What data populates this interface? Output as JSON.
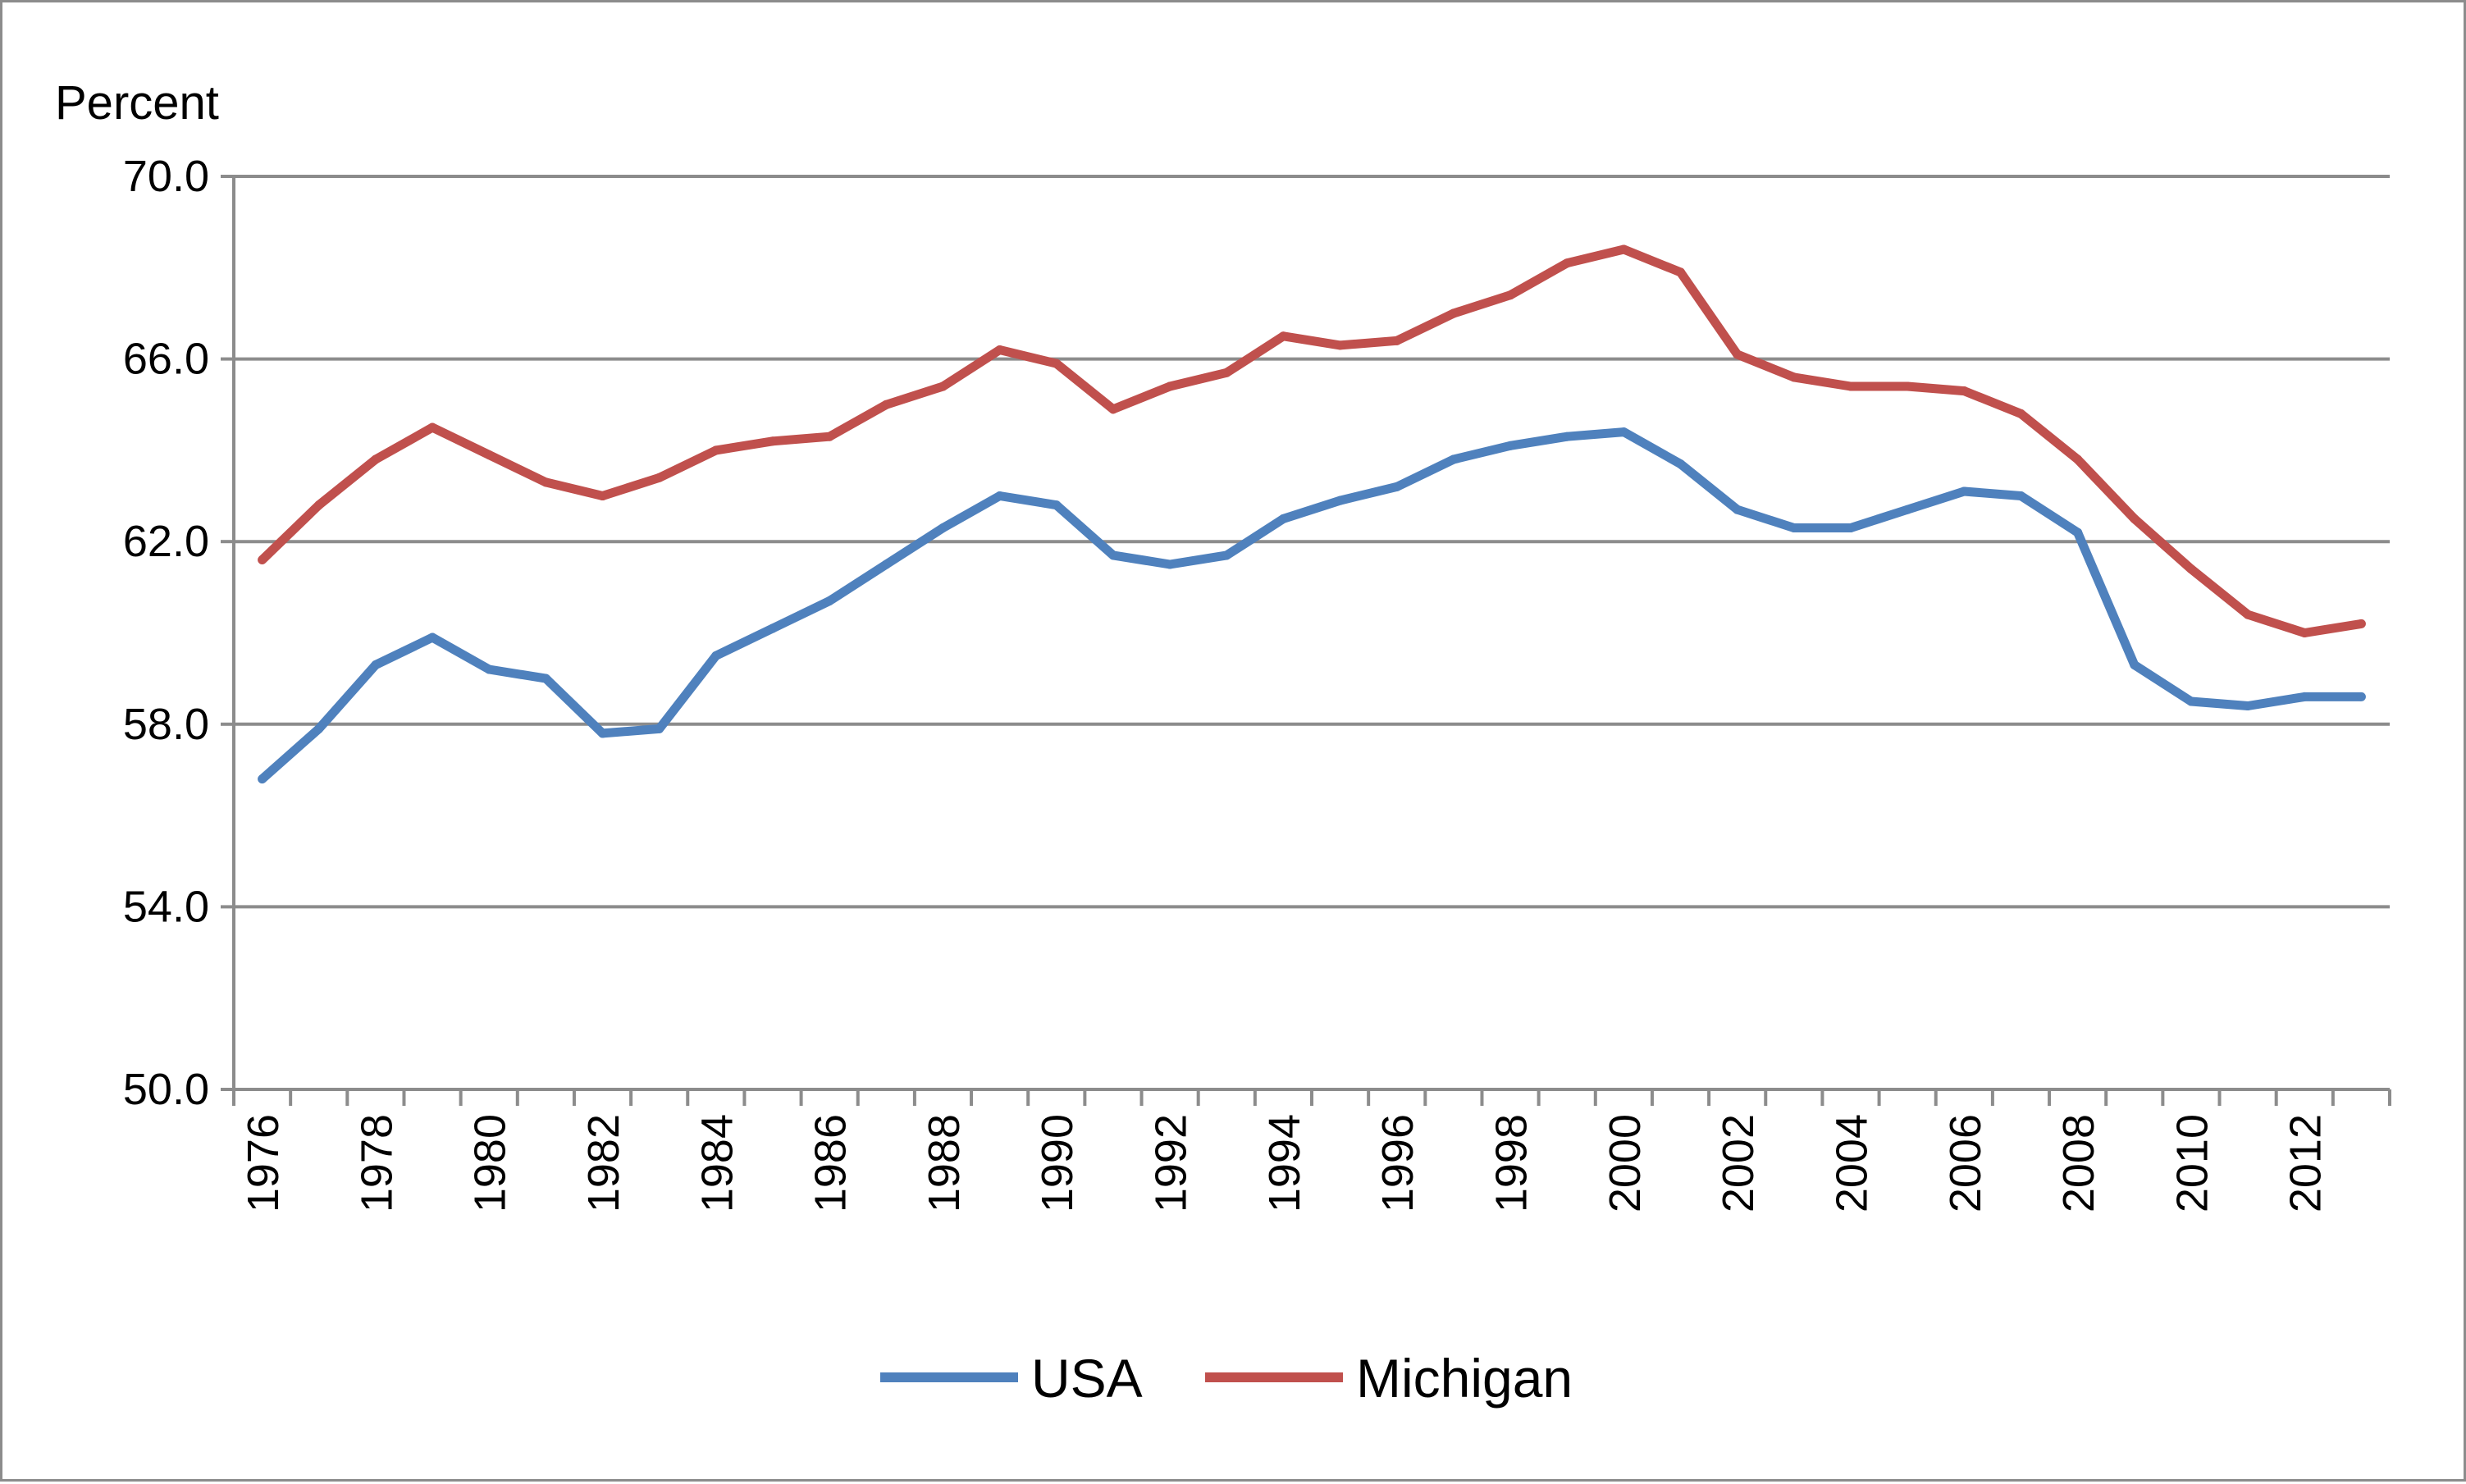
{
  "chart_data": {
    "type": "line",
    "title": "",
    "ylabel": "Percent",
    "xlabel": "",
    "ylim": [
      50,
      70
    ],
    "yticks": [
      "50.0",
      "54.0",
      "58.0",
      "62.0",
      "66.0",
      "70.0"
    ],
    "xtick_labels": [
      "1976",
      "1978",
      "1980",
      "1982",
      "1984",
      "1986",
      "1988",
      "1990",
      "1992",
      "1994",
      "1996",
      "1998",
      "2000",
      "2002",
      "2004",
      "2006",
      "2008",
      "2010",
      "2012"
    ],
    "grid": true,
    "legend_position": "bottom",
    "x": [
      1976,
      1977,
      1978,
      1979,
      1980,
      1981,
      1982,
      1983,
      1984,
      1985,
      1986,
      1987,
      1988,
      1989,
      1990,
      1991,
      1992,
      1993,
      1994,
      1995,
      1996,
      1997,
      1998,
      1999,
      2000,
      2001,
      2002,
      2003,
      2004,
      2005,
      2006,
      2007,
      2008,
      2009,
      2010,
      2011,
      2012,
      2013
    ],
    "series": [
      {
        "name": "USA",
        "color": "#4f81bd",
        "values": [
          56.8,
          57.9,
          59.3,
          59.9,
          59.2,
          59.0,
          57.8,
          57.9,
          59.5,
          60.1,
          60.7,
          61.5,
          62.3,
          63.0,
          62.8,
          61.7,
          61.5,
          61.7,
          62.5,
          62.9,
          63.2,
          63.8,
          64.1,
          64.3,
          64.4,
          63.7,
          62.7,
          62.3,
          62.3,
          62.7,
          63.1,
          63.0,
          62.2,
          59.3,
          58.5,
          58.4,
          58.6,
          58.6
        ]
      },
      {
        "name": "Michigan",
        "color": "#c0504d",
        "values": [
          61.6,
          62.8,
          63.8,
          64.5,
          63.9,
          63.3,
          63.0,
          63.4,
          64.0,
          64.2,
          64.3,
          65.0,
          65.4,
          66.2,
          65.9,
          64.9,
          65.4,
          65.7,
          66.5,
          66.3,
          66.4,
          67.0,
          67.4,
          68.1,
          68.4,
          67.9,
          66.1,
          65.6,
          65.4,
          65.4,
          65.3,
          64.8,
          63.8,
          62.5,
          61.4,
          60.4,
          60.0,
          60.2
        ]
      }
    ]
  }
}
